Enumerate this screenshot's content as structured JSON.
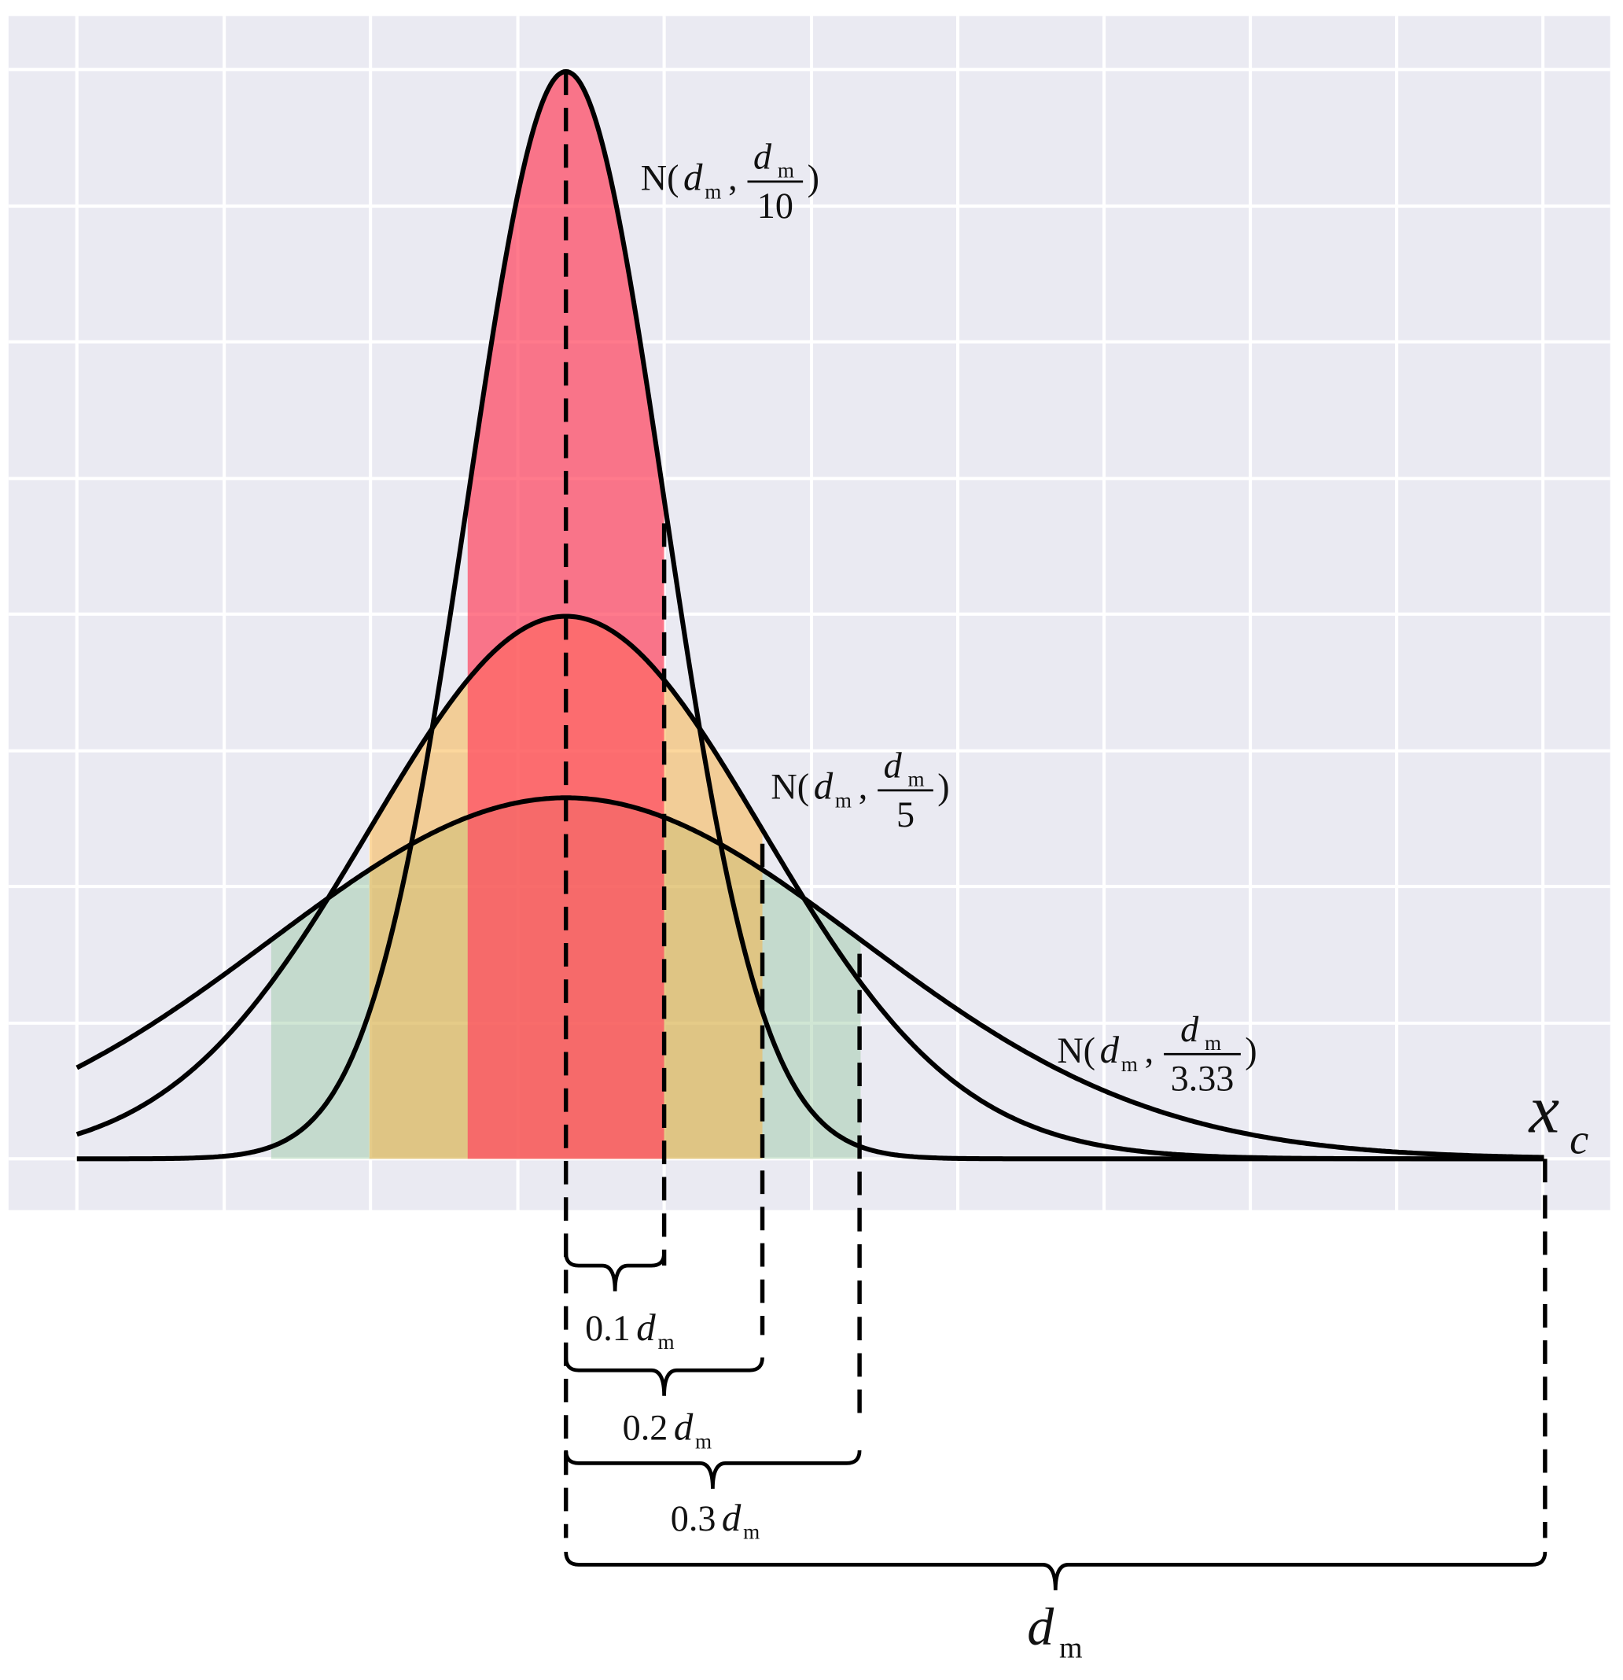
{
  "curve_labels": [
    {
      "prefix": "N(",
      "mean": "d",
      "mean_sub": "m",
      "comma": ",",
      "num": "d",
      "num_sub": "m",
      "den": "10",
      "suffix": ")"
    },
    {
      "prefix": "N(",
      "mean": "d",
      "mean_sub": "m",
      "comma": ",",
      "num": "d",
      "num_sub": "m",
      "den": "5",
      "suffix": ")"
    },
    {
      "prefix": "N(",
      "mean": "d",
      "mean_sub": "m",
      "comma": ",",
      "num": "d",
      "num_sub": "m",
      "den": "3.33",
      "suffix": ")"
    }
  ],
  "offsets": [
    {
      "coef": "0.1",
      "var": "d",
      "sub": "m"
    },
    {
      "coef": "0.2",
      "var": "d",
      "sub": "m"
    },
    {
      "coef": "0.3",
      "var": "d",
      "sub": "m"
    }
  ],
  "total": {
    "var": "d",
    "sub": "m"
  },
  "axis": {
    "var": "x",
    "sub": "c"
  }
}
